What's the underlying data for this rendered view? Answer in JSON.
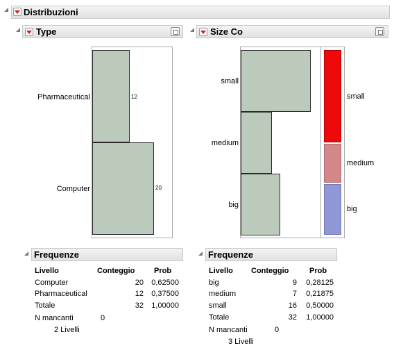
{
  "report": {
    "title": "Distribuzioni"
  },
  "type_panel": {
    "title": "Type",
    "categories": [
      {
        "label": "Pharmaceutical",
        "count_label": "12"
      },
      {
        "label": "Computer",
        "count_label": "20"
      }
    ],
    "freq": {
      "title": "Frequenze",
      "headers": [
        "Livello",
        "Conteggio",
        "Prob"
      ],
      "rows": [
        [
          "Computer",
          "20",
          "0,62500"
        ],
        [
          "Pharmaceutical",
          "12",
          "0,37500"
        ],
        [
          "Totale",
          "32",
          "1,00000"
        ]
      ],
      "missing_label": "N mancanti",
      "missing_value": "0",
      "levels": "2  Livelli"
    }
  },
  "size_panel": {
    "title": "Size Co",
    "categories": [
      {
        "label": "small"
      },
      {
        "label": "medium"
      },
      {
        "label": "big"
      }
    ],
    "mosaic_labels": [
      "small",
      "medium",
      "big"
    ],
    "freq": {
      "title": "Frequenze",
      "headers": [
        "Livello",
        "Conteggio",
        "Prob"
      ],
      "rows": [
        [
          "big",
          "9",
          "0,28125"
        ],
        [
          "medium",
          "7",
          "0,21875"
        ],
        [
          "small",
          "16",
          "0,50000"
        ],
        [
          "Totale",
          "32",
          "1,00000"
        ]
      ],
      "missing_label": "N mancanti",
      "missing_value": "0",
      "levels": "3  Livelli"
    }
  },
  "chart_data": [
    {
      "type": "bar",
      "orientation": "horizontal",
      "categories": [
        "Pharmaceutical",
        "Computer"
      ],
      "values": [
        12,
        20
      ],
      "title": "Type"
    },
    {
      "type": "bar",
      "orientation": "horizontal",
      "categories": [
        "small",
        "medium",
        "big"
      ],
      "values": [
        16,
        7,
        9
      ],
      "title": "Size Co",
      "mosaic_colors": {
        "small": "#ee0a0a",
        "medium": "#d48789",
        "big": "#8f97d4"
      }
    }
  ]
}
